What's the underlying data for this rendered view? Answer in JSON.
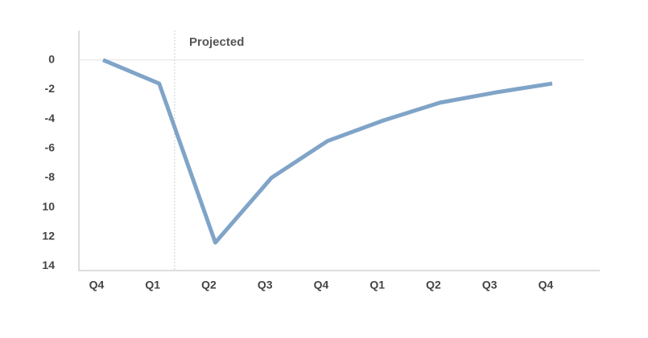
{
  "chart_data": {
    "type": "line",
    "annotation": "Projected",
    "categories": [
      "Q4",
      "Q1",
      "Q2",
      "Q3",
      "Q4",
      "Q1",
      "Q2",
      "Q3",
      "Q4"
    ],
    "series": [
      {
        "color": "#80a4c8",
        "values": [
          0,
          -1.6,
          -12.4,
          -8.0,
          -5.5,
          -4.1,
          -2.9,
          -2.2,
          -1.6
        ]
      }
    ],
    "ylim": [
      -14.3,
      2
    ],
    "yticks": [
      0,
      -2,
      -4,
      -6,
      -8,
      {
        "value": -10,
        "label": "10"
      },
      {
        "value": -12,
        "label": "12"
      },
      {
        "value": -14,
        "label": "14"
      }
    ]
  }
}
